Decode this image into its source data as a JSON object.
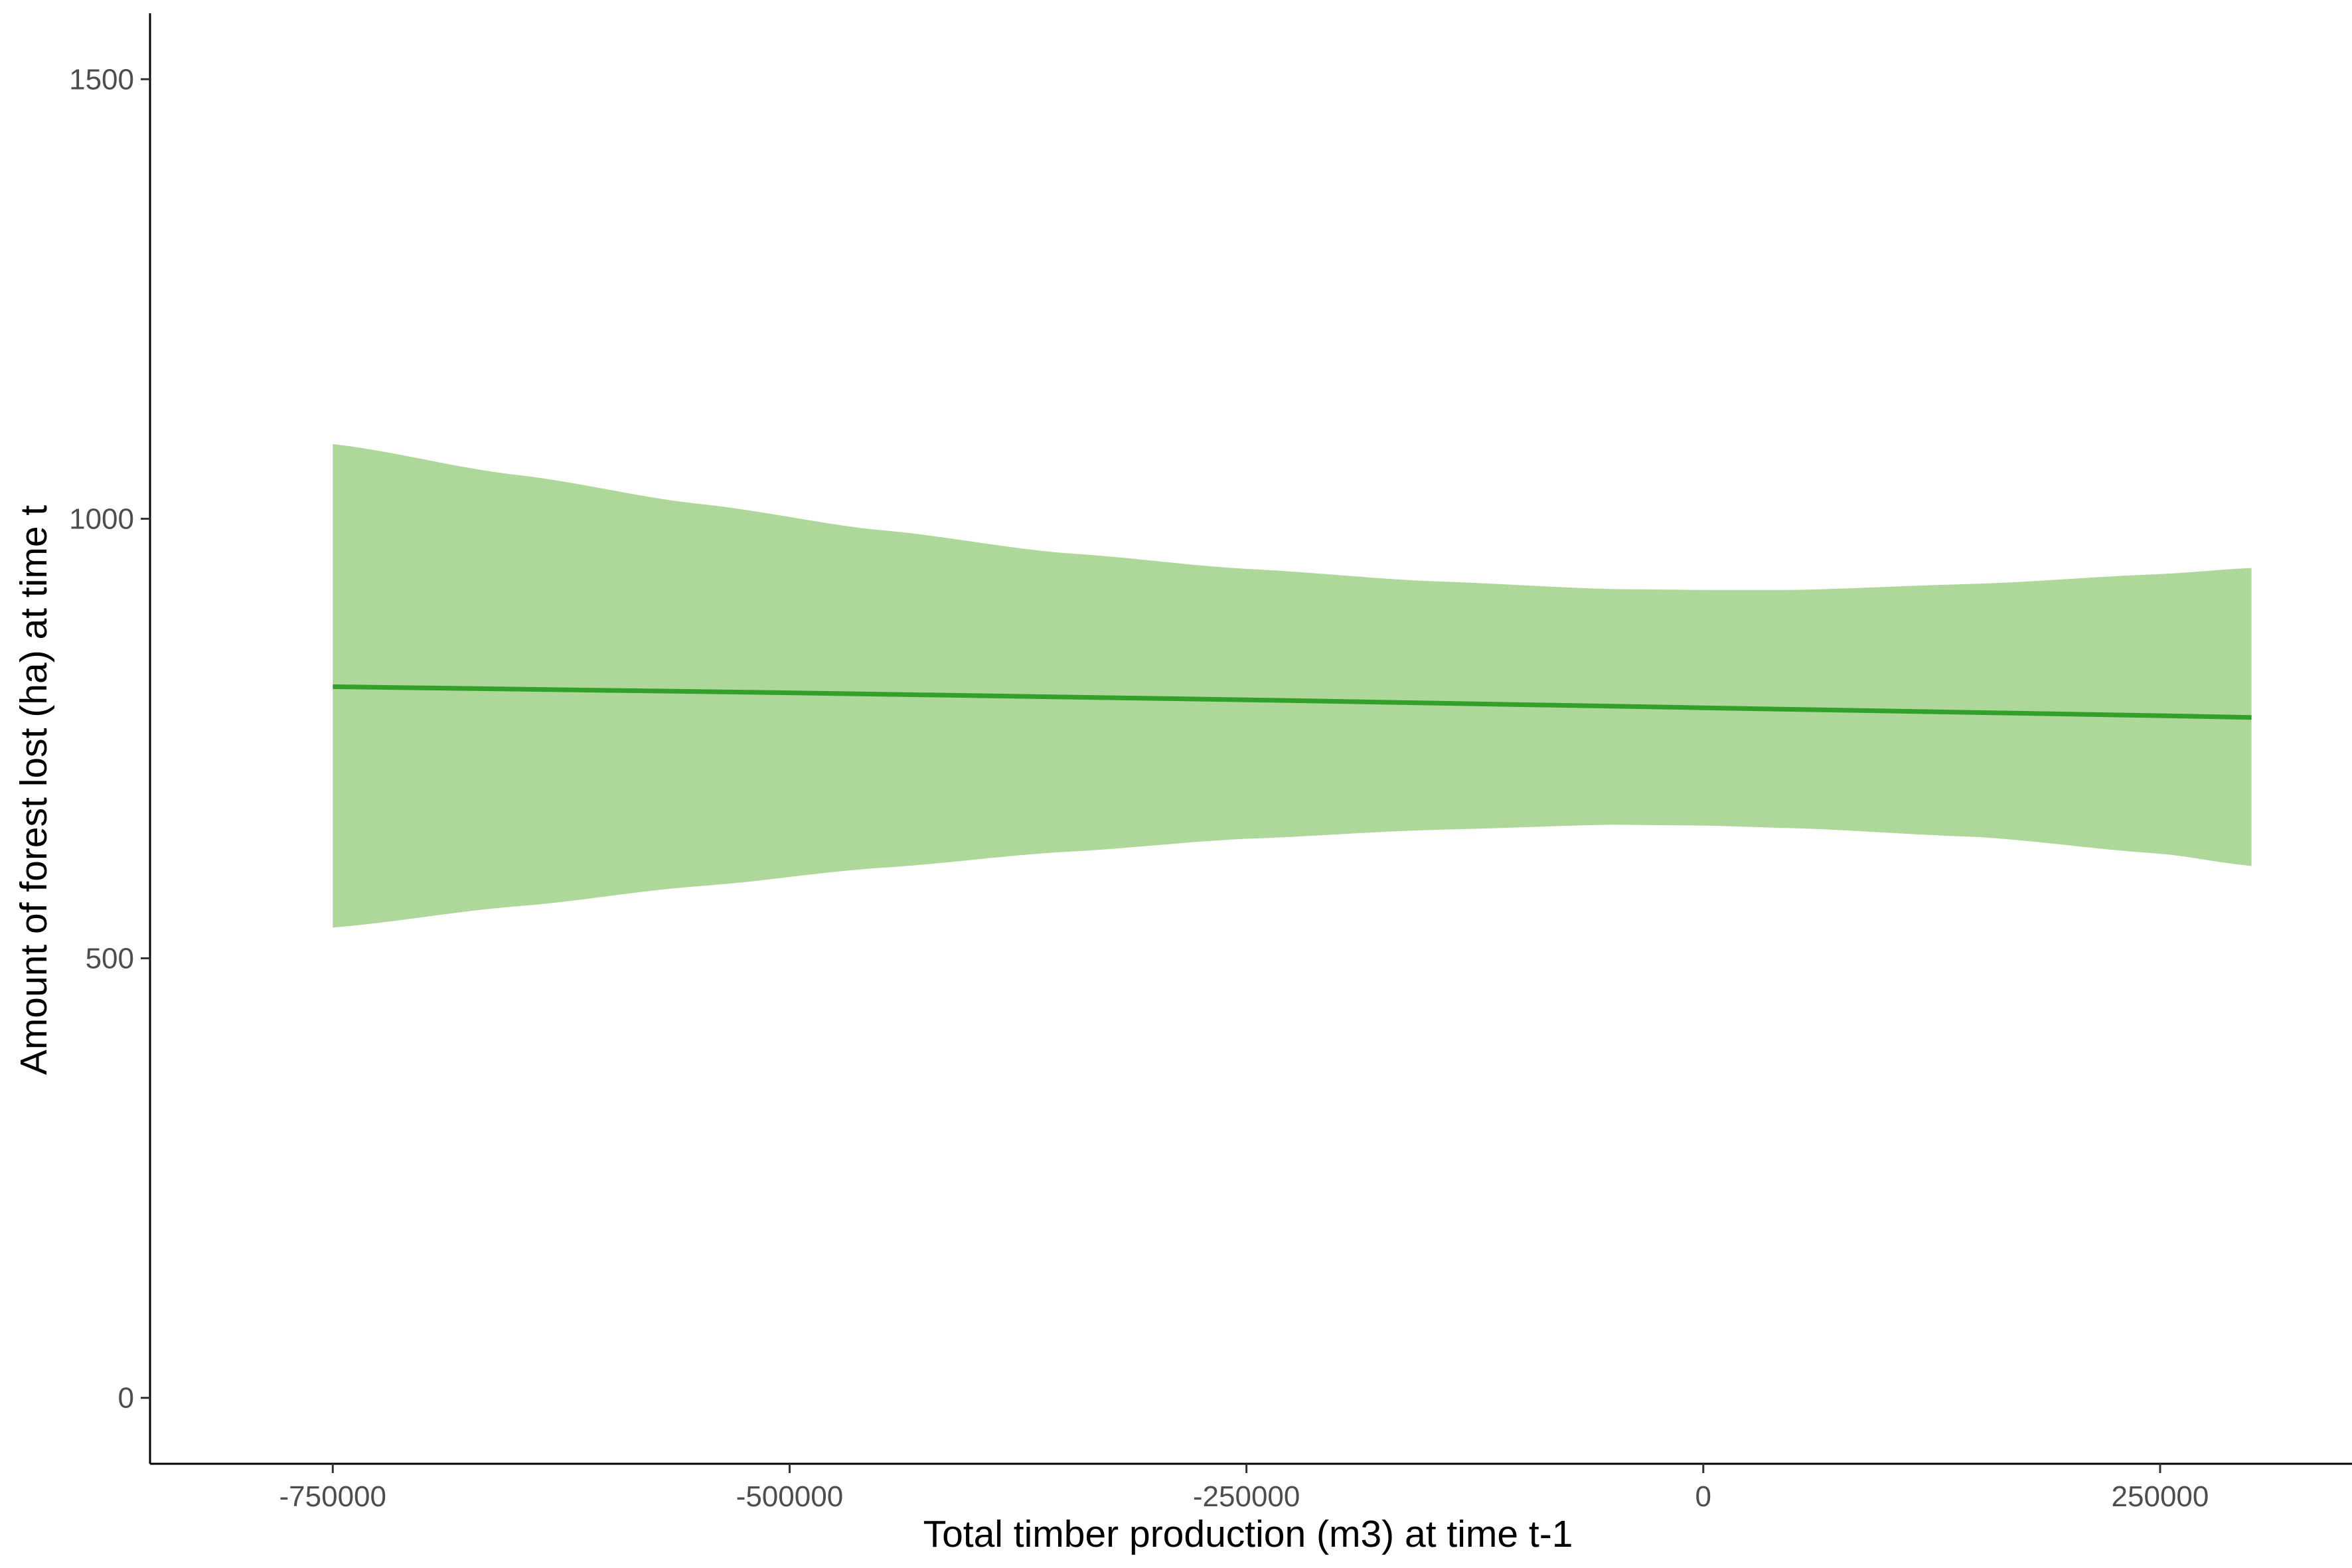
{
  "colors": {
    "band": "#aed79a",
    "line": "#33a02c",
    "axis": "#000000",
    "tick_text": "#4d4d4d"
  },
  "chart_data": {
    "type": "line",
    "title": "",
    "xlabel": "Total timber production (m3) at time t-1",
    "ylabel": "Amount of forest lost (ha) at time t",
    "xlim": [
      -850000,
      355000
    ],
    "ylim": [
      -75,
      1575
    ],
    "x_ticks": [
      -750000,
      -500000,
      -250000,
      0,
      250000
    ],
    "x_tick_labels": [
      "-750000",
      "-500000",
      "-250000",
      "0",
      "250000"
    ],
    "y_ticks": [
      0,
      500,
      1000,
      1500
    ],
    "y_tick_labels": [
      "0",
      "500",
      "1000",
      "1500"
    ],
    "grid": false,
    "legend": "none",
    "series": [
      {
        "kind": "fit",
        "x": [
          -750000,
          -500000,
          -250000,
          0,
          250000,
          300000
        ],
        "y": [
          809,
          802,
          794,
          785,
          776,
          774
        ]
      },
      {
        "kind": "confidence-band",
        "x": [
          -750000,
          -650000,
          -550000,
          -450000,
          -350000,
          -250000,
          -150000,
          -50000,
          0,
          50000,
          150000,
          250000,
          300000
        ],
        "lower": [
          535,
          559,
          582,
          603,
          621,
          636,
          646,
          652,
          651,
          648,
          638,
          619,
          605
        ],
        "upper": [
          1085,
          1050,
          1017,
          987,
          961,
          943,
          929,
          920,
          919,
          919,
          926,
          937,
          944
        ]
      }
    ]
  }
}
